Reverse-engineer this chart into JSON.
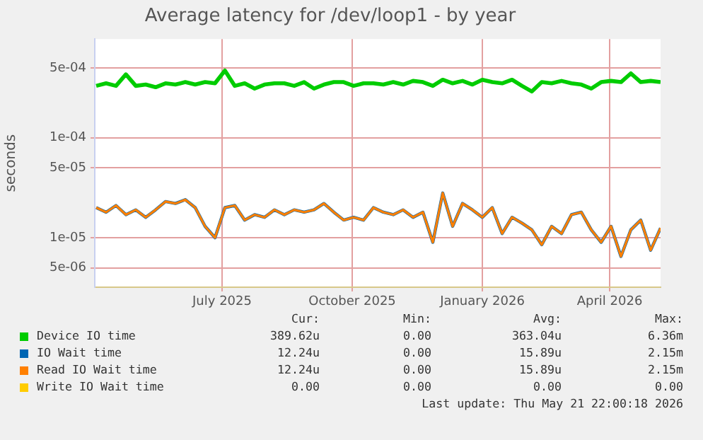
{
  "chart_data": {
    "type": "line",
    "title": "Average latency for /dev/loop1 - by year",
    "ylabel": "seconds",
    "x": [
      "2025-04-17",
      "2025-04-24",
      "2025-05-01",
      "2025-05-08",
      "2025-05-15",
      "2025-05-22",
      "2025-05-29",
      "2025-06-05",
      "2025-06-12",
      "2025-06-19",
      "2025-06-26",
      "2025-07-03",
      "2025-07-10",
      "2025-07-17",
      "2025-07-24",
      "2025-07-31",
      "2025-08-07",
      "2025-08-14",
      "2025-08-21",
      "2025-08-28",
      "2025-09-04",
      "2025-09-11",
      "2025-09-18",
      "2025-09-25",
      "2025-10-02",
      "2025-10-09",
      "2025-10-16",
      "2025-10-23",
      "2025-10-30",
      "2025-11-06",
      "2025-11-13",
      "2025-11-20",
      "2025-11-27",
      "2025-12-04",
      "2025-12-11",
      "2025-12-18",
      "2025-12-25",
      "2026-01-01",
      "2026-01-08",
      "2026-01-15",
      "2026-01-22",
      "2026-01-29",
      "2026-02-05",
      "2026-02-12",
      "2026-02-19",
      "2026-02-26",
      "2026-03-05",
      "2026-03-12",
      "2026-03-19",
      "2026-03-26",
      "2026-04-02",
      "2026-04-09",
      "2026-04-16",
      "2026-04-23",
      "2026-04-30",
      "2026-05-07",
      "2026-05-14",
      "2026-05-21"
    ],
    "series": [
      {
        "name": "Device IO time",
        "color": "#00cc00",
        "values": [
          0.00033,
          0.00035,
          0.00033,
          0.00043,
          0.00033,
          0.00034,
          0.00032,
          0.00035,
          0.00034,
          0.00036,
          0.00034,
          0.00036,
          0.00035,
          0.00047,
          0.00033,
          0.00035,
          0.00031,
          0.00034,
          0.00035,
          0.00035,
          0.00033,
          0.00036,
          0.00031,
          0.00034,
          0.00036,
          0.00036,
          0.00033,
          0.00035,
          0.00035,
          0.00034,
          0.00036,
          0.00034,
          0.00037,
          0.00036,
          0.00033,
          0.00038,
          0.00035,
          0.00037,
          0.00034,
          0.00038,
          0.00036,
          0.00035,
          0.00038,
          0.00033,
          0.00029,
          0.00036,
          0.00035,
          0.00037,
          0.00035,
          0.00034,
          0.00031,
          0.00036,
          0.00037,
          0.00036,
          0.00044,
          0.00036,
          0.00037,
          0.00036
        ]
      },
      {
        "name": "IO Wait time",
        "color": "#0066b3",
        "values": [
          2e-05,
          1.8e-05,
          2.1e-05,
          1.7e-05,
          1.9e-05,
          1.6e-05,
          1.9e-05,
          2.3e-05,
          2.2e-05,
          2.4e-05,
          2e-05,
          1.3e-05,
          1e-05,
          2e-05,
          2.1e-05,
          1.5e-05,
          1.7e-05,
          1.6e-05,
          1.9e-05,
          1.7e-05,
          1.9e-05,
          1.8e-05,
          1.9e-05,
          2.2e-05,
          1.8e-05,
          1.5e-05,
          1.6e-05,
          1.5e-05,
          2e-05,
          1.8e-05,
          1.7e-05,
          1.9e-05,
          1.6e-05,
          1.8e-05,
          9e-06,
          2.8e-05,
          1.3e-05,
          2.2e-05,
          1.9e-05,
          1.6e-05,
          2e-05,
          1.1e-05,
          1.6e-05,
          1.4e-05,
          1.2e-05,
          8.5e-06,
          1.3e-05,
          1.1e-05,
          1.7e-05,
          1.8e-05,
          1.2e-05,
          9e-06,
          1.3e-05,
          6.5e-06,
          1.2e-05,
          1.5e-05,
          7.5e-06,
          1.25e-05
        ]
      },
      {
        "name": "Read IO Wait time",
        "color": "#ff8000",
        "values": [
          2e-05,
          1.8e-05,
          2.1e-05,
          1.7e-05,
          1.9e-05,
          1.6e-05,
          1.9e-05,
          2.3e-05,
          2.2e-05,
          2.4e-05,
          2e-05,
          1.3e-05,
          1e-05,
          2e-05,
          2.1e-05,
          1.5e-05,
          1.7e-05,
          1.6e-05,
          1.9e-05,
          1.7e-05,
          1.9e-05,
          1.8e-05,
          1.9e-05,
          2.2e-05,
          1.8e-05,
          1.5e-05,
          1.6e-05,
          1.5e-05,
          2e-05,
          1.8e-05,
          1.7e-05,
          1.9e-05,
          1.6e-05,
          1.8e-05,
          9e-06,
          2.8e-05,
          1.3e-05,
          2.2e-05,
          1.9e-05,
          1.6e-05,
          2e-05,
          1.1e-05,
          1.6e-05,
          1.4e-05,
          1.2e-05,
          8.5e-06,
          1.3e-05,
          1.1e-05,
          1.7e-05,
          1.8e-05,
          1.2e-05,
          9e-06,
          1.3e-05,
          6.5e-06,
          1.2e-05,
          1.5e-05,
          7.5e-06,
          1.25e-05
        ]
      },
      {
        "name": "Write IO Wait time",
        "color": "#ffcc00",
        "values": [
          null,
          null,
          null,
          null,
          null,
          null,
          null,
          null,
          null,
          null,
          null,
          null,
          null,
          null,
          null,
          null,
          null,
          null,
          null,
          null,
          null,
          null,
          null,
          null,
          null,
          null,
          null,
          null,
          null,
          null,
          null,
          null,
          null,
          null,
          null,
          null,
          null,
          null,
          null,
          null,
          null,
          null,
          null,
          null,
          null,
          null,
          null,
          null,
          null,
          null,
          null,
          null,
          null,
          null,
          null,
          null,
          null,
          null
        ]
      }
    ],
    "xlim": [
      "2025-04-16",
      "2026-05-21"
    ],
    "xticks": [
      {
        "value": "2025-07-15",
        "label": "July 2025"
      },
      {
        "value": "2025-10-15",
        "label": "October 2025"
      },
      {
        "value": "2026-01-15",
        "label": "January 2026"
      },
      {
        "value": "2026-04-15",
        "label": "April 2026"
      }
    ],
    "log": true,
    "ylim": [
      3.2e-06,
      0.00097
    ],
    "yticks": [
      {
        "value": 5e-06,
        "label": "5e-06"
      },
      {
        "value": 1e-05,
        "label": "1e-05"
      },
      {
        "value": 5e-05,
        "label": "5e-05"
      },
      {
        "value": 0.0001,
        "label": "1e-04"
      },
      {
        "value": 0.0005,
        "label": "5e-04"
      }
    ],
    "grid": true,
    "legend": "bottom",
    "marker": "none",
    "line_style": "solid",
    "annotations": [
      "Cur:",
      "Min:",
      "Avg:",
      "Max:",
      "389.62u",
      "0.00",
      "363.04u",
      "6.36m",
      "12.24u",
      "0.00",
      "15.89u",
      "2.15m",
      "12.24u",
      "0.00",
      "15.89u",
      "2.15m",
      "0.00",
      "0.00",
      "0.00",
      "0.00",
      "Last update: Thu May 21 22:00:18 2026"
    ]
  }
}
